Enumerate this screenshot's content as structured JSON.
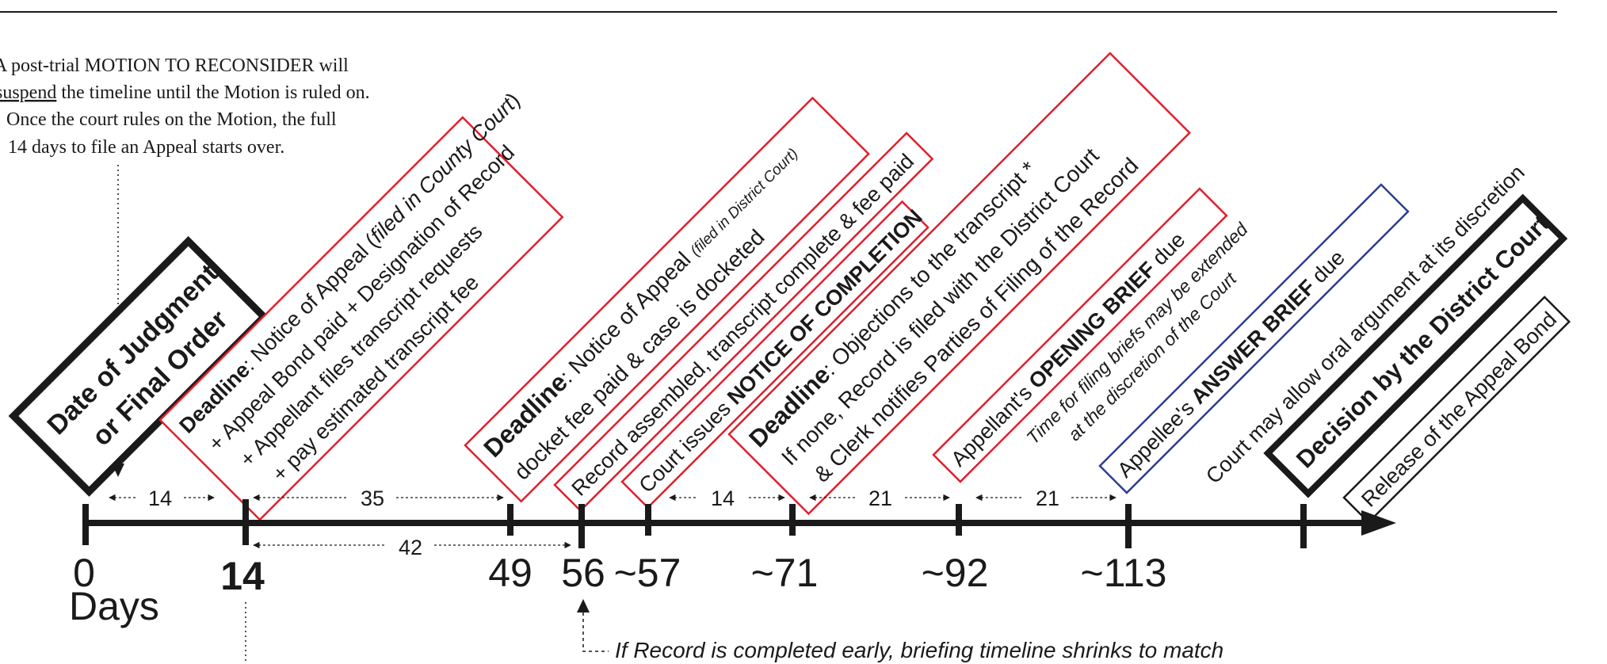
{
  "note": {
    "lines": [
      "A post-trial MOTION TO  RECONSIDER will",
      "suspend",
      " the timeline until the Motion is ruled on.",
      "Once the court rules on the Motion, the full",
      "14 days to file an Appeal starts over."
    ]
  },
  "boxes": {
    "judgment": [
      "Date of Judgment",
      "or Final Order"
    ],
    "deadline14": {
      "l1a": "Deadline",
      "l1b": ": Notice of Appeal (",
      "l1c": "filed in County Court",
      "l1d": ")",
      "l2": "+ Appeal Bond paid + Designation of Record",
      "l3": "+ Appellant files transcript requests",
      "l4": "+ pay  estimated transcript fee"
    },
    "deadline49": {
      "l1a": "Deadline",
      "l1b": ":  Notice of Appeal ",
      "l1c": "(filed in District Court)",
      "l2": "docket fee paid & case is docketed"
    },
    "record56": "Record assembled, transcript complete & fee paid",
    "completion57": {
      "a": "Court issues ",
      "b": "NOTICE OF COMPLETION"
    },
    "deadline71": {
      "l1a": "Deadline",
      "l1b": ":  Objections to the transcript *",
      "l2": "If none, Record is filed with the District Court",
      "l3": "& Clerk notifies Parties of Filing of the Record"
    },
    "opening92": {
      "a": "Appellant's ",
      "b": "OPENING BRIEF",
      "c": " due"
    },
    "extend": [
      "Time for filing briefs may be extended",
      "at the discretion of the Court"
    ],
    "answer113": {
      "a": "Appellee's ",
      "b": "ANSWER BRIEF",
      "c": " due"
    },
    "oral": "Court may allow oral argument at its discretion",
    "decision": "Decision by the District Court",
    "release": "Release of the Appeal Bond"
  },
  "intervals": [
    "14",
    "35",
    "42",
    "14",
    "21",
    "21"
  ],
  "ticks": [
    "0",
    "14",
    "49",
    "56",
    "~57",
    "~71",
    "~92",
    "~113"
  ],
  "days_label": "Days",
  "footnote": "If Record is completed early, briefing timeline shrinks to match",
  "colors": {
    "red": "#e0202c",
    "blue": "#2c3e96",
    "black": "#1a1a1a"
  }
}
